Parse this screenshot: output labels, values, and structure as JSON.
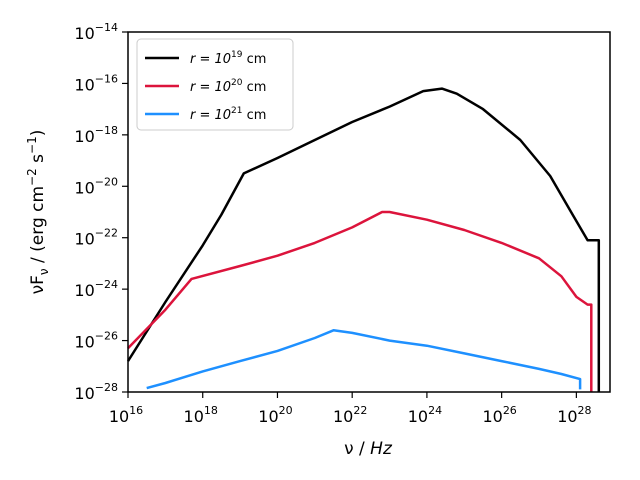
{
  "chart_data": {
    "type": "line",
    "title": "",
    "xscale": "log",
    "yscale": "log",
    "xlim_exp": [
      16,
      28.9
    ],
    "ylim_exp": [
      -28,
      -14
    ],
    "xticks": [
      {
        "exp": 16,
        "base": "10",
        "sup": "16"
      },
      {
        "exp": 18,
        "base": "10",
        "sup": "18"
      },
      {
        "exp": 20,
        "base": "10",
        "sup": "20"
      },
      {
        "exp": 22,
        "base": "10",
        "sup": "22"
      },
      {
        "exp": 24,
        "base": "10",
        "sup": "24"
      },
      {
        "exp": 26,
        "base": "10",
        "sup": "26"
      },
      {
        "exp": 28,
        "base": "10",
        "sup": "28"
      }
    ],
    "yticks": [
      {
        "exp": -14,
        "base": "10",
        "sup": "−14"
      },
      {
        "exp": -16,
        "base": "10",
        "sup": "−16"
      },
      {
        "exp": -18,
        "base": "10",
        "sup": "−18"
      },
      {
        "exp": -20,
        "base": "10",
        "sup": "−20"
      },
      {
        "exp": -22,
        "base": "10",
        "sup": "−22"
      },
      {
        "exp": -24,
        "base": "10",
        "sup": "−24"
      },
      {
        "exp": -26,
        "base": "10",
        "sup": "−26"
      },
      {
        "exp": -28,
        "base": "10",
        "sup": "−28"
      }
    ],
    "xlabel": {
      "pre": "ν / ",
      "main": "Hz"
    },
    "ylabel": {
      "t1": "νF",
      "sub": "ν",
      "t2": " / (erg cm",
      "sup1": "−2",
      "t3": " s",
      "sup2": "−1",
      "t4": ")"
    },
    "legend": {
      "placement": "upper left"
    },
    "series": [
      {
        "name_pre": "r = 10",
        "name_sup": "19",
        "name_post": " cm",
        "color": "#000000",
        "log_x": [
          16.0,
          17.0,
          18.0,
          18.5,
          19.1,
          20.0,
          21.0,
          22.0,
          23.0,
          23.9,
          24.4,
          24.8,
          25.5,
          26.5,
          27.3,
          27.9,
          28.3,
          28.6,
          28.6
        ],
        "log_y": [
          -26.8,
          -24.5,
          -22.3,
          -21.1,
          -19.5,
          -18.9,
          -18.2,
          -17.5,
          -16.9,
          -16.3,
          -16.2,
          -16.4,
          -17.0,
          -18.2,
          -19.6,
          -21.1,
          -22.1,
          -22.1,
          -28.0
        ]
      },
      {
        "name_pre": "r = 10",
        "name_sup": "20",
        "name_post": " cm",
        "color": "#dc143c",
        "log_x": [
          16.0,
          17.0,
          17.7,
          19.0,
          20.0,
          21.0,
          22.0,
          22.8,
          23.0,
          24.0,
          25.0,
          26.0,
          27.0,
          27.6,
          28.0,
          28.3,
          28.4,
          28.4
        ],
        "log_y": [
          -26.3,
          -24.8,
          -23.6,
          -23.1,
          -22.7,
          -22.2,
          -21.6,
          -21.0,
          -21.0,
          -21.3,
          -21.7,
          -22.2,
          -22.8,
          -23.5,
          -24.3,
          -24.6,
          -24.6,
          -28.0
        ]
      },
      {
        "name_pre": "r = 10",
        "name_sup": "21",
        "name_post": " cm",
        "color": "#1e90ff",
        "log_x": [
          16.5,
          17.0,
          18.0,
          19.0,
          20.0,
          21.0,
          21.5,
          22.0,
          23.0,
          24.0,
          25.0,
          26.0,
          27.0,
          27.6,
          28.1,
          28.1
        ],
        "log_y": [
          -27.85,
          -27.65,
          -27.2,
          -26.8,
          -26.4,
          -25.9,
          -25.6,
          -25.7,
          -26.0,
          -26.2,
          -26.5,
          -26.8,
          -27.1,
          -27.3,
          -27.5,
          -27.9
        ]
      }
    ]
  }
}
